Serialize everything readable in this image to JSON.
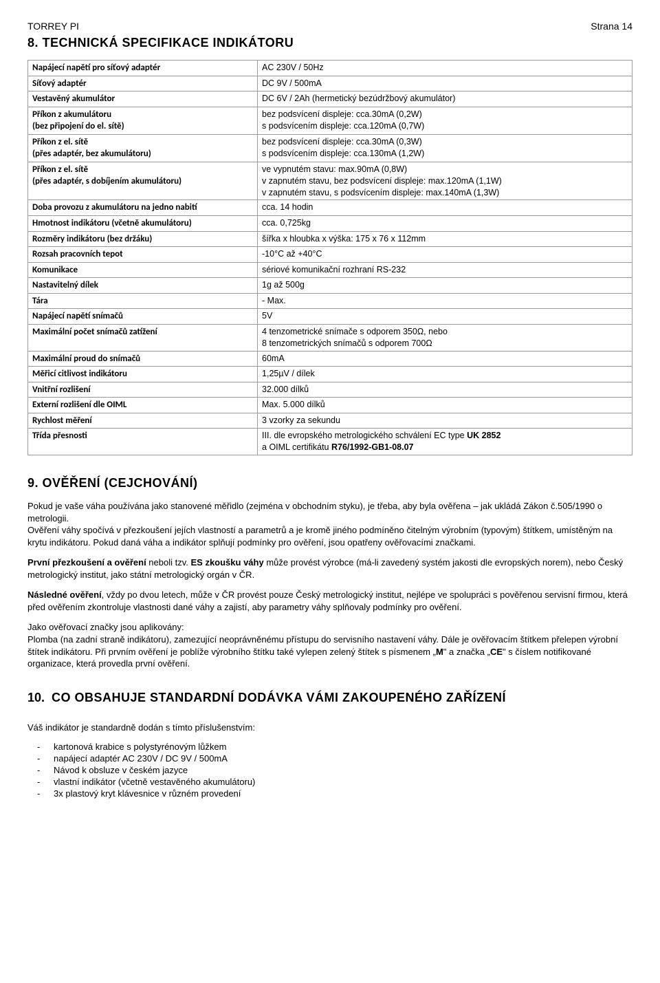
{
  "header": {
    "brand": "TORREY PI",
    "page": "Strana 14"
  },
  "section8": {
    "title": "8. TECHNICKÁ SPECIFIKACE INDIKÁTORU",
    "rows": [
      {
        "label": "Napájecí napětí pro síťový adaptér",
        "value": "AC 230V / 50Hz"
      },
      {
        "label": "Síťový adaptér",
        "value": "DC 9V / 500mA"
      },
      {
        "label": "Vestavěný akumulátor",
        "value": "DC 6V / 2Ah (hermetický bezúdržbový akumulátor)"
      },
      {
        "label": "Příkon z akumulátoru\n(bez připojení do el. sítě)",
        "value": "bez podsvícení displeje: cca.30mA (0,2W)\ns podsvícením displeje: cca.120mA (0,7W)"
      },
      {
        "label": "Příkon z el. sítě\n(přes adaptér, bez akumulátoru)",
        "value": "bez podsvícení displeje: cca.30mA (0,3W)\ns podsvícením displeje: cca.130mA (1,2W)"
      },
      {
        "label": "Příkon z el. sítě\n(přes adaptér, s dobíjením akumulátoru)",
        "value": "ve vypnutém stavu: max.90mA (0,8W)\nv zapnutém stavu, bez podsvícení displeje: max.120mA (1,1W)\nv zapnutém stavu, s podsvícením displeje: max.140mA (1,3W)"
      },
      {
        "label": "Doba provozu z akumulátoru na jedno nabití",
        "value": "cca. 14 hodin"
      },
      {
        "label": "Hmotnost indikátoru (včetně akumulátoru)",
        "value": "cca. 0,725kg"
      },
      {
        "label": "Rozměry indikátoru (bez držáku)",
        "value": "šířka x hloubka x výška:        175 x 76 x 112mm"
      },
      {
        "label": "Rozsah pracovních tepot",
        "value": "-10°C až +40°C"
      },
      {
        "label": "Komunikace",
        "value": "sériové komunikační rozhraní RS-232"
      },
      {
        "label": "Nastavitelný dílek",
        "value": "1g až 500g"
      },
      {
        "label": "Tára",
        "value": "- Max."
      },
      {
        "label": "Napájecí napětí snímačů",
        "value": "5V"
      },
      {
        "label": "Maximální počet snímačů zatížení",
        "value": "4 tenzometrické snímače s odporem 350Ω, nebo\n8 tenzometrických snímačů s odporem 700Ω"
      },
      {
        "label": "Maximální proud do snímačů",
        "value": "60mA"
      },
      {
        "label": "Měřicí citlivost indikátoru",
        "value": "1,25µV / dílek"
      },
      {
        "label": "Vnitřní rozlišení",
        "value": "32.000 dílků"
      },
      {
        "label": "Externí rozlišení dle OIML",
        "value": "Max. 5.000 dílků"
      },
      {
        "label": "Rychlost měření",
        "value": "3 vzorky za sekundu"
      },
      {
        "label": "Třída přesnosti",
        "value_html": "III. dle evropského metrologického schválení EC type <strong>UK 2852</strong><br>a OIML certifikátu <strong>R76/1992-GB1-08.07</strong>"
      }
    ]
  },
  "section9": {
    "title": "9. OVĚŘENÍ (CEJCHOVÁNÍ)",
    "p1": "Pokud je vaše váha používána jako stanovené měřidlo (zejména v obchodním styku), je třeba, aby byla ověřena – jak ukládá Zákon č.505/1990 o metrologii.",
    "p2": "Ověření váhy spočívá v přezkoušení jejích vlastností a parametrů a je kromě jiného podmíněno čitelným výrobním (typovým) štítkem, umístěným na krytu indikátoru. Pokud daná váha a indikátor splňují podmínky pro ověření, jsou opatřeny ověřovacími značkami.",
    "p3_html": "<strong>První přezkoušení a ověření</strong> neboli tzv. <strong>ES zkoušku váhy</strong> může provést výrobce (má-li zavedený systém jakosti dle evropských norem), nebo Český metrologický institut, jako státní metrologický orgán v ČR.",
    "p4_html": "<strong>Následné ověření</strong>, vždy po dvou letech, může v ČR provést pouze Český metrologický institut, nejlépe ve spolupráci s pověřenou servisní firmou, která před ověřením zkontroluje vlastnosti dané váhy a zajistí, aby parametry váhy splňovaly podmínky pro ověření.",
    "p5": "Jako ověřovací značky jsou aplikovány:",
    "p6_html": "Plomba (na zadní straně indikátoru), zamezující neoprávněnému přístupu do servisního nastavení váhy. Dále je ověřovacím štítkem přelepen výrobní štítek indikátoru. Při prvním ověření je poblíže výrobního štítku také vylepen zelený štítek s písmenem „<strong>M</strong>\" a značka „<strong>CE</strong>\" s číslem notifikované organizace, která provedla první ověření."
  },
  "section10": {
    "num": "10.",
    "title": "CO OBSAHUJE STANDARDNÍ DODÁVKA VÁMI ZAKOUPENÉHO ZAŘÍZENÍ",
    "intro": "Váš indikátor je standardně dodán s tímto příslušenstvím:",
    "items": [
      "kartonová krabice s polystyrénovým lůžkem",
      "napájecí adaptér AC 230V / DC 9V / 500mA",
      "Návod k obsluze v českém jazyce",
      "vlastní indikátor (včetně vestavěného akumulátoru)",
      "3x plastový kryt klávesnice v různém provedení"
    ]
  }
}
